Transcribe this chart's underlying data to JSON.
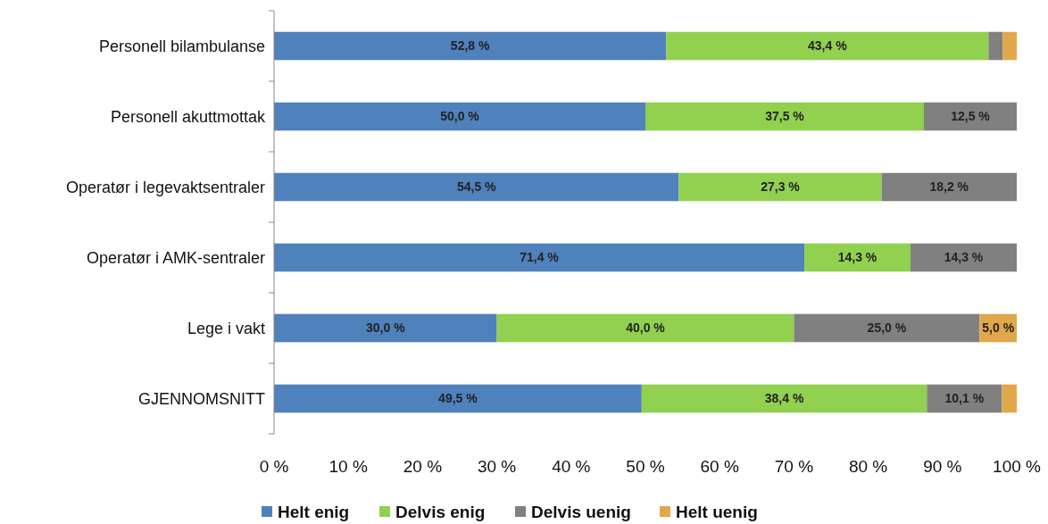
{
  "chart_data": {
    "type": "bar",
    "orientation": "horizontal",
    "stacked": true,
    "legend": "bottom",
    "categories": [
      "Personell bilambulanse",
      "Personell akuttmottak",
      "Operatør i legevaktsentraler",
      "Operatør i AMK-sentraler",
      "Lege i vakt",
      "GJENNOMSNITT"
    ],
    "xlim": [
      0,
      100
    ],
    "xticks": [
      {
        "value": 0,
        "label": "0 %"
      },
      {
        "value": 10,
        "label": "10 %"
      },
      {
        "value": 20,
        "label": "20 %"
      },
      {
        "value": 30,
        "label": "30 %"
      },
      {
        "value": 40,
        "label": "40 %"
      },
      {
        "value": 50,
        "label": "50 %"
      },
      {
        "value": 60,
        "label": "60 %"
      },
      {
        "value": 70,
        "label": "70 %"
      },
      {
        "value": 80,
        "label": "80 %"
      },
      {
        "value": 90,
        "label": "90 %"
      },
      {
        "value": 100,
        "label": "100 %"
      }
    ],
    "series": [
      {
        "name": "Helt enig",
        "color": "#4f81bd",
        "values": [
          52.8,
          50.0,
          54.5,
          71.4,
          30.0,
          49.5
        ],
        "value_labels": [
          "52,8 %",
          "50,0 %",
          "54,5 %",
          "71,4 %",
          "30,0 %",
          "49,5 %"
        ]
      },
      {
        "name": "Delvis enig",
        "color": "#92d050",
        "values": [
          43.4,
          37.5,
          27.3,
          14.3,
          40.0,
          38.4
        ],
        "value_labels": [
          "43,4 %",
          "37,5 %",
          "27,3 %",
          "14,3 %",
          "40,0 %",
          "38,4 %"
        ]
      },
      {
        "name": "Delvis uenig",
        "color": "#808080",
        "values": [
          1.9,
          12.5,
          18.2,
          14.3,
          25.0,
          10.1
        ],
        "value_labels": [
          null,
          "12,5 %",
          "18,2 %",
          "14,3 %",
          "25,0 %",
          "10,1 %"
        ]
      },
      {
        "name": "Helt uenig",
        "color": "#e0a84a",
        "values": [
          1.9,
          0,
          0,
          0,
          5.0,
          2.0
        ],
        "value_labels": [
          null,
          null,
          null,
          null,
          "5,0 %",
          null
        ]
      }
    ]
  }
}
